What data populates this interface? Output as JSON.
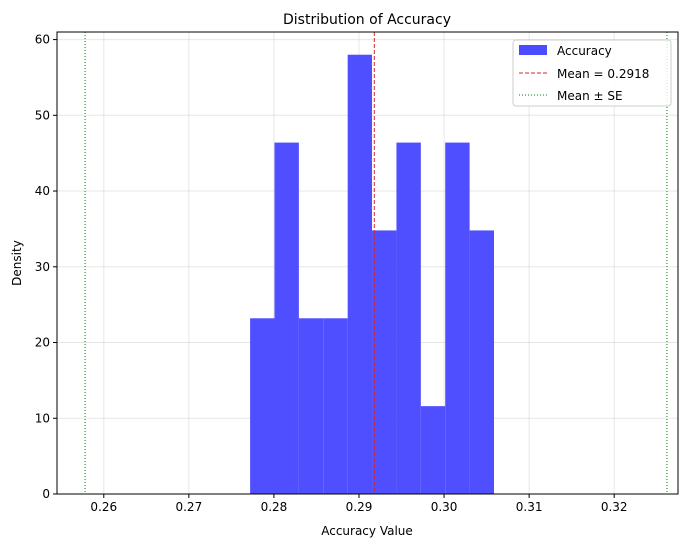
{
  "chart_data": {
    "type": "bar",
    "title": "Distribution of Accuracy",
    "xlabel": "Accuracy Value",
    "ylabel": "Density",
    "xlim": [
      0.2545,
      0.3275
    ],
    "ylim": [
      0,
      61
    ],
    "xticks": [
      0.26,
      0.27,
      0.28,
      0.29,
      0.3,
      0.31,
      0.32
    ],
    "xtick_labels": [
      "0.26",
      "0.27",
      "0.28",
      "0.29",
      "0.30",
      "0.31",
      "0.32"
    ],
    "yticks": [
      0,
      10,
      20,
      30,
      40,
      50,
      60
    ],
    "ytick_labels": [
      "0",
      "10",
      "20",
      "30",
      "40",
      "50",
      "60"
    ],
    "grid": true,
    "histogram": {
      "name": "Accuracy",
      "color": "#4b4bff",
      "bin_start": 0.2772,
      "bin_width": 0.002867,
      "values": [
        23.2,
        46.4,
        23.2,
        23.2,
        58.0,
        34.8,
        46.4,
        11.6,
        46.4,
        34.8
      ]
    },
    "mean_line": {
      "name": "Mean = 0.2918",
      "value": 0.2918,
      "color": "#d62728",
      "style": "dashed"
    },
    "se_lines": {
      "name": "Mean ± SE",
      "values": [
        0.2578,
        0.3262
      ],
      "color": "#008000",
      "style": "dotted"
    },
    "legend_placement": "top-right"
  }
}
